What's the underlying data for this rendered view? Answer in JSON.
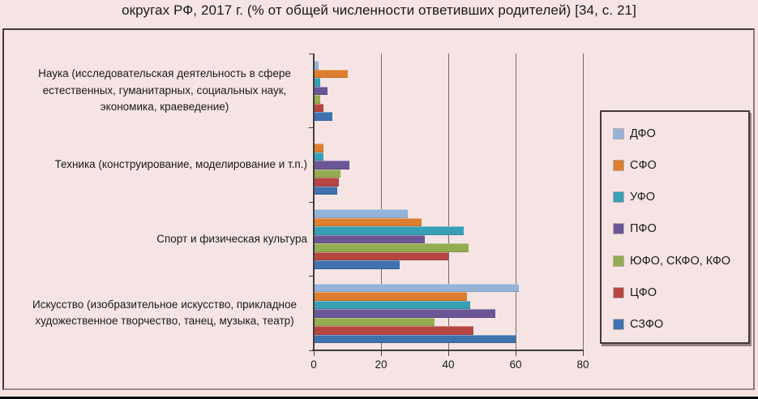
{
  "title": "округах РФ, 2017 г. (% от общей численности ответивших родителей) [34, с. 21]",
  "colors": {
    "background": "#F6E4E4",
    "frame_border": "#453A3A",
    "gridline": "#6E6E6E",
    "axis": "#3F3F3F",
    "text": "#1A1A1A"
  },
  "chart_data": {
    "type": "bar",
    "orientation": "horizontal",
    "title": "округах РФ, 2017 г. (% от общей численности ответивших родителей) [34, с. 21]",
    "categories": [
      "Наука (исследовательская деятельность в сфере естественных, гуманитарных, социальных наук, экономика, краеведение)",
      "Техника (конструирование, моделирование и т.п.)",
      "Спорт и физическая культура",
      "Искусство (изобразительное искусство, прикладное художественное творчество, танец, музыка, театр)"
    ],
    "series": [
      {
        "name": "ДФО",
        "color": "#95B3D7",
        "values": [
          1.5,
          0,
          28,
          61
        ]
      },
      {
        "name": "СФО",
        "color": "#DD7E2E",
        "values": [
          10,
          3,
          32,
          45.5
        ]
      },
      {
        "name": "УФО",
        "color": "#38A0B5",
        "values": [
          2,
          3,
          44.5,
          46.5
        ]
      },
      {
        "name": "ПФО",
        "color": "#6A5596",
        "values": [
          4,
          10.5,
          33,
          54
        ]
      },
      {
        "name": "ЮФО, СКФО, КФО",
        "color": "#93AC51",
        "values": [
          2,
          8,
          46,
          36
        ]
      },
      {
        "name": "ЦФО",
        "color": "#B74642",
        "values": [
          3,
          7.5,
          40,
          47.5
        ]
      },
      {
        "name": "СЗФО",
        "color": "#4071B0",
        "values": [
          5.5,
          7,
          25.5,
          60
        ]
      }
    ],
    "xlim": [
      0,
      80
    ],
    "x_ticks": [
      0,
      20,
      40,
      60,
      80
    ],
    "grid": true,
    "legend_position": "right",
    "series_draw_order": "top to bottom within each category group, same as legend order",
    "ylabel": "",
    "xlabel": ""
  }
}
